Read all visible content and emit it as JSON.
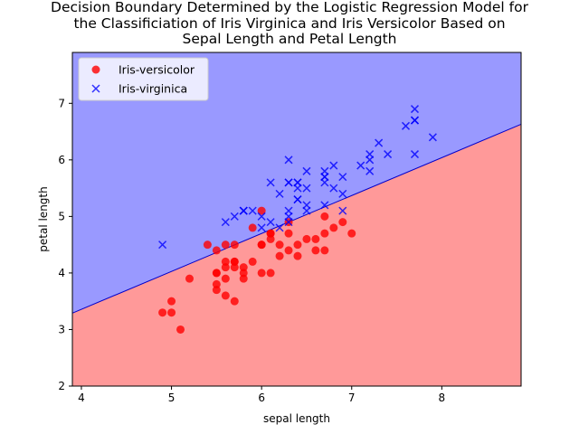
{
  "chart_data": {
    "type": "scatter",
    "title_lines": [
      "Decision Boundary Determined by the Logistic Regression Model for",
      "the Classificiation of Iris Virginica and Iris Versicolor Based on",
      "Sepal Length and Petal Length"
    ],
    "xlabel": "sepal length",
    "ylabel": "petal length",
    "xlim": [
      3.9,
      8.88
    ],
    "ylim": [
      2.0,
      7.9
    ],
    "xticks": [
      4,
      5,
      6,
      7,
      8
    ],
    "yticks": [
      2,
      3,
      4,
      5,
      6,
      7
    ],
    "grid": false,
    "legend_position": "top-left",
    "decision_boundary": {
      "x": [
        3.9,
        8.88
      ],
      "y": [
        3.29,
        6.63
      ]
    },
    "regions": {
      "upper_color": "#9999ff",
      "lower_color": "#ff9999",
      "boundary_color": "#0000cc"
    },
    "series": [
      {
        "name": "Iris-versicolor",
        "marker": "circle",
        "color": "#ff0000",
        "points": [
          [
            7.0,
            4.7
          ],
          [
            6.4,
            4.5
          ],
          [
            6.9,
            4.9
          ],
          [
            5.5,
            4.0
          ],
          [
            6.5,
            4.6
          ],
          [
            5.7,
            4.5
          ],
          [
            6.3,
            4.7
          ],
          [
            4.9,
            3.3
          ],
          [
            6.6,
            4.6
          ],
          [
            5.2,
            3.9
          ],
          [
            5.0,
            3.5
          ],
          [
            5.9,
            4.2
          ],
          [
            6.0,
            4.0
          ],
          [
            6.1,
            4.7
          ],
          [
            5.6,
            3.6
          ],
          [
            6.7,
            4.4
          ],
          [
            5.6,
            4.5
          ],
          [
            5.8,
            4.1
          ],
          [
            6.2,
            4.5
          ],
          [
            5.6,
            3.9
          ],
          [
            5.9,
            4.8
          ],
          [
            6.1,
            4.0
          ],
          [
            6.3,
            4.9
          ],
          [
            6.1,
            4.7
          ],
          [
            6.4,
            4.3
          ],
          [
            6.6,
            4.4
          ],
          [
            6.8,
            4.8
          ],
          [
            6.7,
            5.0
          ],
          [
            6.0,
            4.5
          ],
          [
            5.7,
            3.5
          ],
          [
            5.5,
            3.8
          ],
          [
            5.5,
            3.7
          ],
          [
            5.8,
            3.9
          ],
          [
            6.0,
            5.1
          ],
          [
            5.4,
            4.5
          ],
          [
            6.0,
            4.5
          ],
          [
            6.7,
            4.7
          ],
          [
            6.3,
            4.4
          ],
          [
            5.6,
            4.1
          ],
          [
            5.5,
            4.0
          ],
          [
            5.5,
            4.4
          ],
          [
            6.1,
            4.6
          ],
          [
            5.8,
            4.0
          ],
          [
            5.0,
            3.3
          ],
          [
            5.6,
            4.2
          ],
          [
            5.7,
            4.2
          ],
          [
            5.7,
            4.2
          ],
          [
            6.2,
            4.3
          ],
          [
            5.1,
            3.0
          ],
          [
            5.7,
            4.1
          ]
        ]
      },
      {
        "name": "Iris-virginica",
        "marker": "x",
        "color": "#0000ff",
        "points": [
          [
            6.3,
            6.0
          ],
          [
            5.8,
            5.1
          ],
          [
            7.1,
            5.9
          ],
          [
            6.3,
            5.6
          ],
          [
            6.5,
            5.8
          ],
          [
            7.6,
            6.6
          ],
          [
            4.9,
            4.5
          ],
          [
            7.3,
            6.3
          ],
          [
            6.7,
            5.8
          ],
          [
            7.2,
            6.1
          ],
          [
            6.5,
            5.1
          ],
          [
            6.4,
            5.3
          ],
          [
            6.8,
            5.5
          ],
          [
            5.7,
            5.0
          ],
          [
            5.8,
            5.1
          ],
          [
            6.4,
            5.3
          ],
          [
            6.5,
            5.5
          ],
          [
            7.7,
            6.7
          ],
          [
            7.7,
            6.9
          ],
          [
            6.0,
            5.0
          ],
          [
            6.9,
            5.7
          ],
          [
            5.6,
            4.9
          ],
          [
            7.7,
            6.7
          ],
          [
            6.3,
            4.9
          ],
          [
            6.7,
            5.7
          ],
          [
            7.2,
            6.0
          ],
          [
            6.2,
            4.8
          ],
          [
            6.1,
            4.9
          ],
          [
            6.4,
            5.6
          ],
          [
            7.2,
            5.8
          ],
          [
            7.4,
            6.1
          ],
          [
            7.9,
            6.4
          ],
          [
            6.4,
            5.6
          ],
          [
            6.3,
            5.1
          ],
          [
            6.1,
            5.6
          ],
          [
            7.7,
            6.1
          ],
          [
            6.3,
            5.6
          ],
          [
            6.4,
            5.5
          ],
          [
            6.0,
            4.8
          ],
          [
            6.9,
            5.4
          ],
          [
            6.7,
            5.6
          ],
          [
            6.9,
            5.1
          ],
          [
            5.8,
            5.1
          ],
          [
            6.8,
            5.9
          ],
          [
            6.7,
            5.7
          ],
          [
            6.7,
            5.2
          ],
          [
            6.3,
            5.0
          ],
          [
            6.5,
            5.2
          ],
          [
            6.2,
            5.4
          ],
          [
            5.9,
            5.1
          ]
        ]
      }
    ]
  }
}
